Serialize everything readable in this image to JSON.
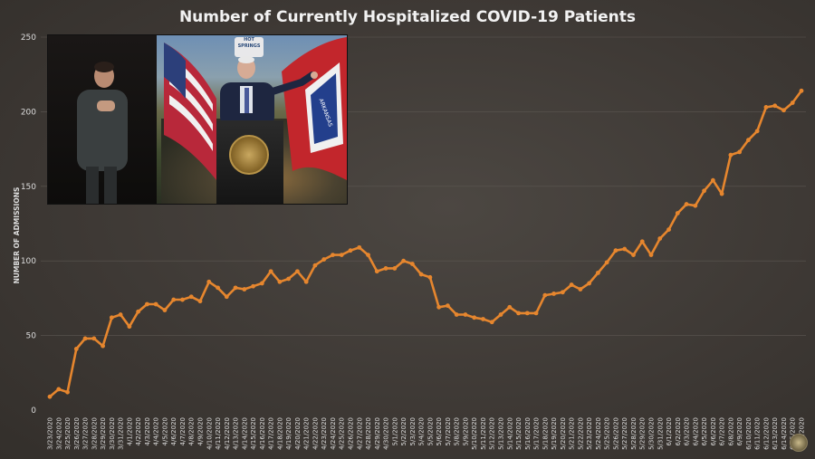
{
  "chart_data": {
    "type": "line",
    "title": "Number of Currently Hospitalized COVID-19 Patients",
    "xlabel": "",
    "ylabel": "NUMBER OF ADMISSIONS",
    "ylim": [
      0,
      250
    ],
    "yticks": [
      0,
      50,
      100,
      150,
      200,
      250
    ],
    "grid": true,
    "legend": "none",
    "line_color": "#e6862e",
    "x": [
      "3/23/2020",
      "3/24/2020",
      "3/25/2020",
      "3/26/2020",
      "3/27/2020",
      "3/28/2020",
      "3/29/2020",
      "3/30/2020",
      "3/31/2020",
      "4/1/2020",
      "4/2/2020",
      "4/3/2020",
      "4/4/2020",
      "4/5/2020",
      "4/6/2020",
      "4/7/2020",
      "4/8/2020",
      "4/9/2020",
      "4/10/2020",
      "4/11/2020",
      "4/12/2020",
      "4/13/2020",
      "4/14/2020",
      "4/15/2020",
      "4/16/2020",
      "4/17/2020",
      "4/18/2020",
      "4/19/2020",
      "4/20/2020",
      "4/21/2020",
      "4/22/2020",
      "4/23/2020",
      "4/24/2020",
      "4/25/2020",
      "4/26/2020",
      "4/27/2020",
      "4/28/2020",
      "4/29/2020",
      "4/30/2020",
      "5/1/2020",
      "5/2/2020",
      "5/3/2020",
      "5/4/2020",
      "5/5/2020",
      "5/6/2020",
      "5/7/2020",
      "5/8/2020",
      "5/9/2020",
      "5/10/2020",
      "5/11/2020",
      "5/12/2020",
      "5/13/2020",
      "5/14/2020",
      "5/15/2020",
      "5/16/2020",
      "5/17/2020",
      "5/18/2020",
      "5/19/2020",
      "5/20/2020",
      "5/21/2020",
      "5/22/2020",
      "5/23/2020",
      "5/24/2020",
      "5/25/2020",
      "5/26/2020",
      "5/27/2020",
      "5/28/2020",
      "5/29/2020",
      "5/30/2020",
      "5/31/2020",
      "6/1/2020",
      "6/2/2020",
      "6/3/2020",
      "6/4/2020",
      "6/5/2020",
      "6/6/2020",
      "6/7/2020",
      "6/8/2020",
      "6/9/2020",
      "6/10/2020",
      "6/11/2020",
      "6/12/2020",
      "6/13/2020",
      "6/14/2020",
      "6/15/2020",
      "6/16/2020"
    ],
    "x_labels_shown": [
      "3/23/2020",
      "3/24/2020",
      "3/25/2020",
      "3/26/2020",
      "3/27/2020",
      "3/28/2020",
      "3/29/2020",
      "3/30/2020",
      "3/31/2020",
      "4/1/2020",
      "4/2/2020",
      "4/3/2020",
      "4/4/2020",
      "4/5/2020",
      "4/6/2020",
      "4/7/2020",
      "4/8/2020",
      "4/9/2020",
      "4/10/2020",
      "4/11/2020",
      "4/12/2020",
      "4/13/2020",
      "4/14/2020",
      "4/15/2020",
      "4/16/2020",
      "4/17/2020",
      "4/18/2020",
      "4/19/2020",
      "4/20/2020",
      "4/21/2020",
      "4/22/2020",
      "4/23/2020",
      "4/24/2020",
      "4/25/2020",
      "4/26/2020",
      "4/27/2020",
      "4/28/2020",
      "4/29/2020",
      "4/30/2020",
      "5/1/2020",
      "5/2/2020",
      "5/3/2020",
      "5/4/2020",
      "5/5/2020",
      "5/6/2020",
      "5/7/2020",
      "5/8/2020",
      "5/9/2020",
      "5/10/2020",
      "5/11/2020",
      "5/12/2020",
      "5/13/2020",
      "5/14/2020",
      "5/15/2020",
      "5/16/2020",
      "5/17/2020",
      "5/18/2020",
      "5/19/2020",
      "5/20/2020",
      "5/21/2020",
      "5/22/2020",
      "5/23/2020",
      "5/24/2020",
      "5/25/2020",
      "5/26/2020",
      "5/27/2020",
      "5/28/2020",
      "5/29/2020",
      "5/30/2020",
      "5/31/2020",
      "6/1/2020",
      "6/2/2020",
      "6/3/2020",
      "6/4/2020",
      "6/5/2020",
      "6/6/2020",
      "6/7/2020",
      "6/8/2020",
      "6/9/2020",
      "6/10/2020",
      "6/11/2020",
      "6/12/2020",
      "6/13/2020",
      "6/14/2020",
      "6/15/2020",
      "6/16/2020"
    ],
    "series": [
      {
        "values": [
          9,
          14,
          12,
          41,
          48,
          48,
          43,
          62,
          64,
          56,
          66,
          71,
          71,
          67,
          74,
          74,
          76,
          73,
          86,
          82,
          76,
          82,
          81,
          83,
          85,
          93,
          86,
          88,
          93,
          86,
          97,
          101,
          104,
          104,
          107,
          109,
          104,
          93,
          95,
          95,
          100,
          98,
          91,
          89,
          69,
          70,
          64,
          64,
          62,
          61,
          59,
          64,
          69,
          65,
          65,
          65,
          77,
          78,
          79,
          84,
          81,
          85,
          92,
          99,
          107,
          108,
          104,
          113,
          104,
          115,
          121,
          132,
          138,
          137,
          147,
          154,
          145,
          171,
          173,
          181,
          187,
          203,
          204,
          201,
          206,
          214
        ]
      }
    ]
  },
  "inset": {
    "badge_text": "HOT SPRINGS",
    "flag_state_text": "ARKANSAS"
  }
}
